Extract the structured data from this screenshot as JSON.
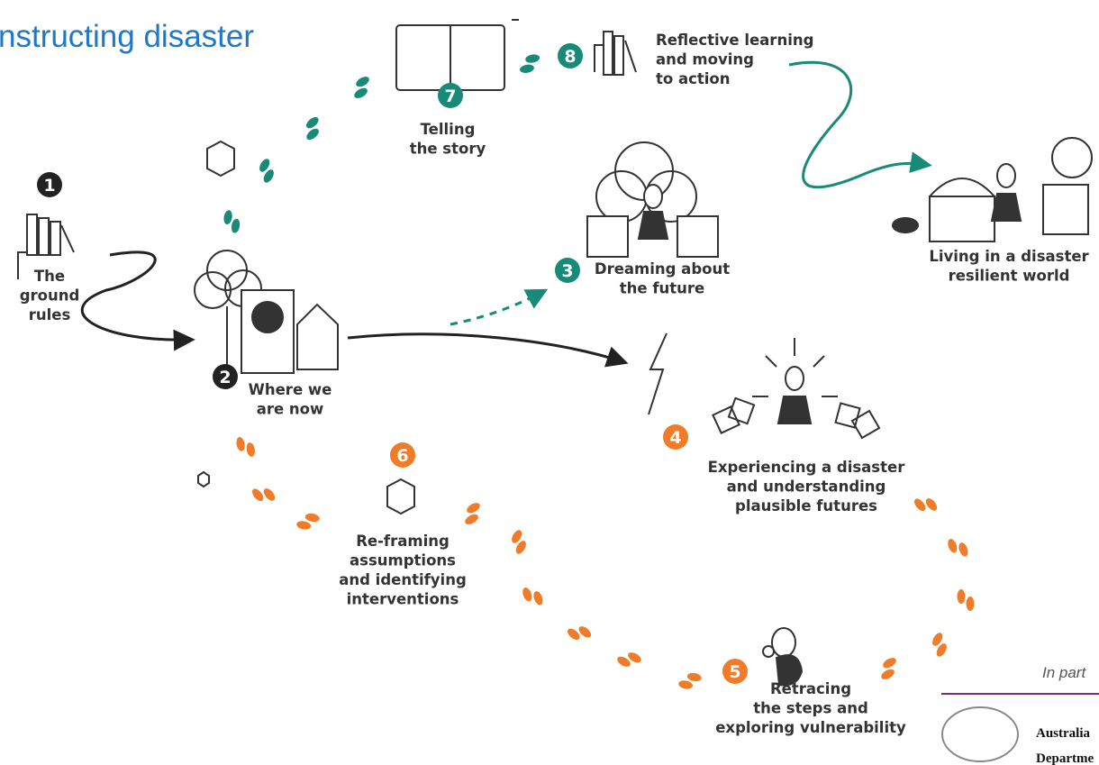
{
  "header": {
    "title": "nstructing disaster"
  },
  "steps": [
    {
      "number": 1,
      "lines": [
        "The",
        "ground",
        "rules"
      ]
    },
    {
      "number": 2,
      "lines": [
        "Where we",
        "are now"
      ]
    },
    {
      "number": 3,
      "lines": [
        "Dreaming about",
        "the future"
      ]
    },
    {
      "number": 4,
      "lines": [
        "Experiencing a disaster",
        "and understanding",
        "plausible futures"
      ]
    },
    {
      "number": 5,
      "lines": [
        "Retracing",
        "the steps and",
        "exploring vulnerability"
      ]
    },
    {
      "number": 6,
      "lines": [
        "Re-framing",
        "assumptions",
        "and identifying",
        "interventions"
      ]
    },
    {
      "number": 7,
      "lines": [
        "Telling",
        "the story"
      ]
    },
    {
      "number": 8,
      "lines": [
        "Reflective learning",
        "and moving",
        "to action"
      ]
    }
  ],
  "outcome": {
    "lines": [
      "Living in a disaster",
      "resilient world"
    ]
  },
  "partner": {
    "caption": "In part",
    "logo_lines": [
      "Australia",
      "Departme"
    ]
  }
}
